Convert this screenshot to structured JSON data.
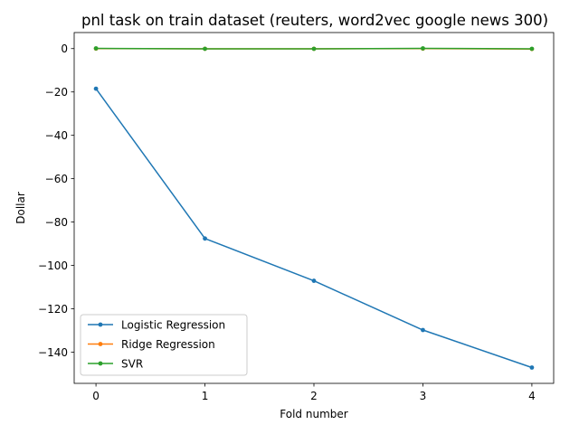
{
  "chart_data": {
    "type": "line",
    "title": "pnl task on train dataset (reuters, word2vec google news 300)",
    "xlabel": "Fold number",
    "ylabel": "Dollar",
    "x": [
      0,
      1,
      2,
      3,
      4
    ],
    "xlim": [
      -0.2,
      4.2
    ],
    "ylim": [
      -154.4,
      7.4
    ],
    "xticks": [
      0,
      1,
      2,
      3,
      4
    ],
    "xtick_labels": [
      "0",
      "1",
      "2",
      "3",
      "4"
    ],
    "yticks": [
      0,
      -20,
      -40,
      -60,
      -80,
      -100,
      -120,
      -140
    ],
    "ytick_labels": [
      "0",
      "−20",
      "−40",
      "−60",
      "−80",
      "−100",
      "−120",
      "−140"
    ],
    "grid": false,
    "legend_position": "lower-left",
    "series": [
      {
        "name": "Logistic Regression",
        "color": "#1f77b4",
        "marker": "dot",
        "values": [
          -18.5,
          -87.6,
          -107.1,
          -129.8,
          -147.1
        ]
      },
      {
        "name": "Ridge Regression",
        "color": "#ff7f0e",
        "marker": "dot",
        "values": [
          0.0,
          -0.1,
          -0.1,
          0.0,
          -0.2
        ]
      },
      {
        "name": "SVR",
        "color": "#2ca02c",
        "marker": "dot",
        "values": [
          0.1,
          -0.1,
          -0.1,
          0.1,
          -0.1
        ]
      }
    ]
  }
}
